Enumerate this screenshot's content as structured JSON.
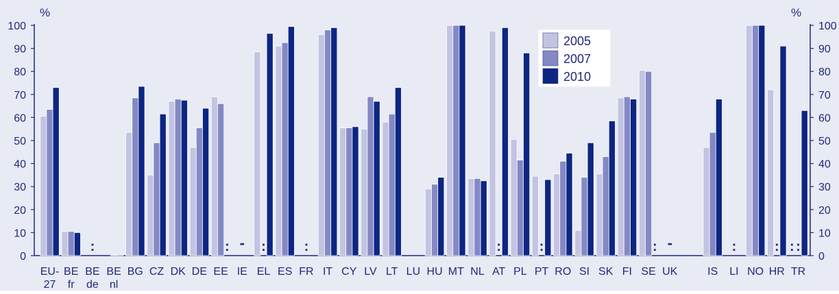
{
  "colors": {
    "background": "#e8eaf4",
    "axis": "#1f2a78",
    "text": "#1f2a78",
    "s2005": "#c2c4e2",
    "s2007": "#8488c4",
    "s2010": "#0c2682"
  },
  "chart_data": {
    "type": "bar",
    "title": "",
    "xlabel": "",
    "ylabel": "%",
    "ylabel_right": "%",
    "ylim": [
      0,
      100
    ],
    "yticks": [
      0,
      10,
      20,
      30,
      40,
      50,
      60,
      70,
      80,
      90,
      100
    ],
    "grid": false,
    "legend_position": "top-center",
    "legend": [
      "2005",
      "2007",
      "2010"
    ],
    "categories": [
      [
        "EU-",
        "27"
      ],
      [
        "BE",
        "fr"
      ],
      [
        "BE",
        "de"
      ],
      [
        "BE",
        "nl"
      ],
      [
        "BG"
      ],
      [
        "CZ"
      ],
      [
        "DK"
      ],
      [
        "DE"
      ],
      [
        "EE"
      ],
      [
        "IE"
      ],
      [
        "EL"
      ],
      [
        "ES"
      ],
      [
        "FR"
      ],
      [
        "IT"
      ],
      [
        "CY"
      ],
      [
        "LV"
      ],
      [
        "LT"
      ],
      [
        "LU"
      ],
      [
        "HU"
      ],
      [
        "MT"
      ],
      [
        "NL"
      ],
      [
        "AT"
      ],
      [
        "PL"
      ],
      [
        "PT"
      ],
      [
        "RO"
      ],
      [
        "SI"
      ],
      [
        "SK"
      ],
      [
        "FI"
      ],
      [
        "SE"
      ],
      [
        "UK"
      ],
      [
        ""
      ],
      [
        "IS"
      ],
      [
        "LI"
      ],
      [
        "NO"
      ],
      [
        "HR"
      ],
      [
        "TR"
      ]
    ],
    "series": [
      {
        "name": "2005",
        "values": [
          60.5,
          10.5,
          null,
          null,
          53.5,
          35,
          67,
          47,
          69,
          null,
          88.5,
          91,
          null,
          96,
          55.5,
          55,
          58,
          null,
          29,
          100,
          33.5,
          97.5,
          50.5,
          34.5,
          35.5,
          11,
          35.5,
          68.5,
          80.5,
          null,
          null,
          47,
          null,
          100,
          72,
          null
        ]
      },
      {
        "name": "2007",
        "values": [
          63.5,
          10.5,
          null,
          0.3,
          68.5,
          49,
          68,
          55.5,
          66,
          null,
          null,
          92.5,
          null,
          98,
          55.5,
          69,
          61.5,
          null,
          31,
          100,
          33.5,
          null,
          41.5,
          null,
          41,
          34,
          43,
          69,
          80,
          null,
          null,
          53.5,
          null,
          100,
          null,
          null
        ]
      },
      {
        "name": "2010",
        "values": [
          73,
          10,
          null,
          0.3,
          73.5,
          61.5,
          67.5,
          64,
          null,
          null,
          96.5,
          99.5,
          null,
          99,
          56,
          67,
          73,
          null,
          34,
          100,
          32.5,
          99,
          88,
          33,
          44.5,
          49,
          58.5,
          68,
          null,
          null,
          null,
          68,
          null,
          100,
          91,
          63
        ]
      }
    ],
    "annotations": [
      {
        "category": 2,
        "series": 1,
        "text": ":"
      },
      {
        "category": 8,
        "series": 2,
        "text": ":"
      },
      {
        "category": 9,
        "series": 1,
        "text": "-"
      },
      {
        "category": 10,
        "series": 1,
        "text": ":"
      },
      {
        "category": 12,
        "series": 1,
        "text": ":"
      },
      {
        "category": 21,
        "series": 1,
        "text": ":"
      },
      {
        "category": 23,
        "series": 1,
        "text": ":"
      },
      {
        "category": 28,
        "series": 2,
        "text": ":"
      },
      {
        "category": 29,
        "series": 1,
        "text": "-"
      },
      {
        "category": 32,
        "series": 1,
        "text": ":"
      },
      {
        "category": 34,
        "series": 1,
        "text": ":"
      },
      {
        "category": 35,
        "series": 0,
        "text": ":"
      },
      {
        "category": 35,
        "series": 1,
        "text": ":"
      }
    ]
  }
}
